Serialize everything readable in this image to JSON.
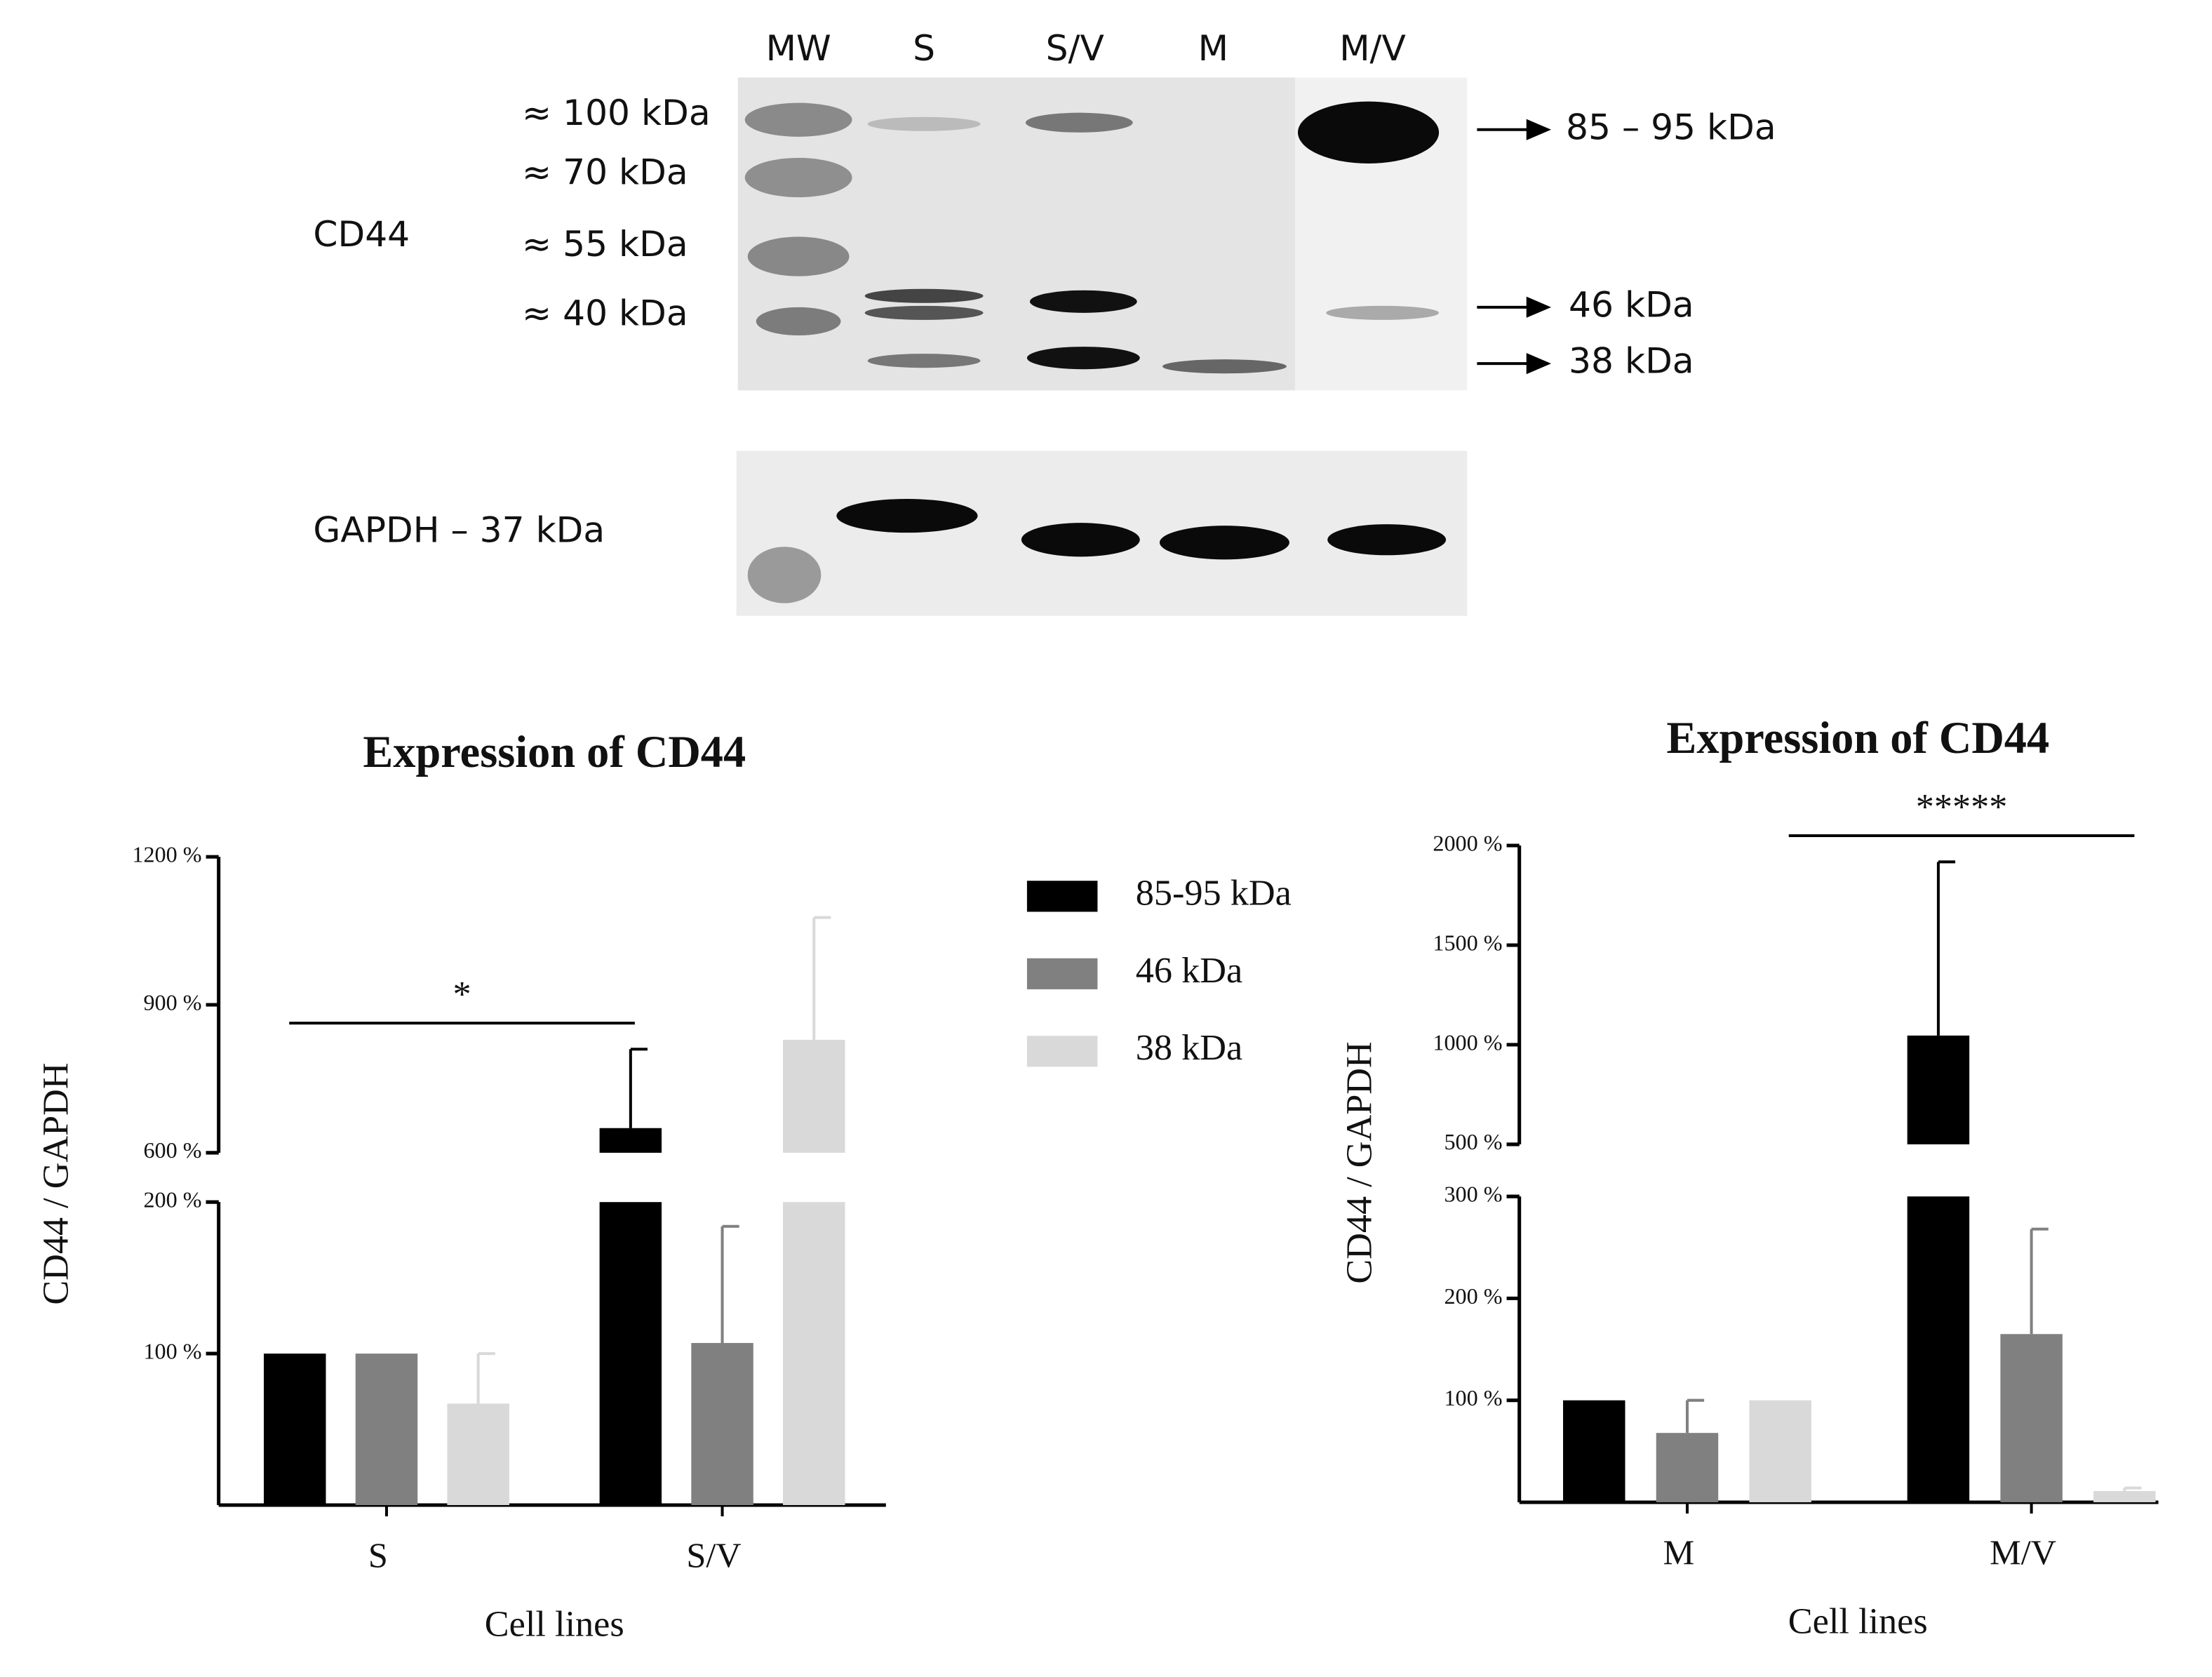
{
  "blot": {
    "lanes": [
      "MW",
      "S",
      "S/V",
      "M",
      "M/V"
    ],
    "markers": [
      "≈ 100 kDa",
      "≈ 70 kDa",
      "≈ 55 kDa",
      "≈ 40 kDa"
    ],
    "protein": "CD44",
    "bands": [
      "85 – 95 kDa",
      "46 kDa",
      "38 kDa"
    ],
    "control": "GAPDH – 37 kDa"
  },
  "chart_data": [
    {
      "type": "bar",
      "title": "Expression of CD44",
      "x_label": "Cell lines",
      "y_label": "CD44 / GAPDH",
      "categories": [
        "S",
        "S/V"
      ],
      "series": [
        {
          "name": "85-95 kDa",
          "color": "#000000",
          "values": [
            100,
            650
          ],
          "errors": [
            0,
            160
          ]
        },
        {
          "name": "46 kDa",
          "color": "#808080",
          "values": [
            100,
            107
          ],
          "errors": [
            0,
            77
          ]
        },
        {
          "name": "38 kDa",
          "color": "#d9d9d9",
          "values": [
            67,
            829
          ],
          "errors": [
            33,
            248
          ]
        }
      ],
      "ylim": [
        0,
        1200
      ],
      "ybreak": [
        200,
        600
      ],
      "yticks": [
        {
          "value": 100,
          "label": "100 %"
        },
        {
          "value": 200,
          "label": "200 %"
        },
        {
          "value": 600,
          "label": "600 %"
        },
        {
          "value": 900,
          "label": "900 %"
        },
        {
          "value": 1200,
          "label": "1200 %"
        }
      ],
      "annotations": [
        {
          "text": "*"
        }
      ],
      "legend": true
    },
    {
      "type": "bar",
      "title": "Expression of CD44",
      "x_label": "Cell lines",
      "y_label": "CD44 / GAPDH",
      "categories": [
        "M",
        "M/V"
      ],
      "series": [
        {
          "color": "#000000",
          "values": [
            100,
            1046
          ],
          "errors": [
            0,
            872
          ]
        },
        {
          "color": "#808080",
          "values": [
            68,
            165
          ],
          "errors": [
            32,
            103
          ]
        },
        {
          "color": "#d9d9d9",
          "values": [
            100,
            11
          ],
          "errors": [
            0,
            3
          ]
        }
      ],
      "ylim": [
        0,
        2000
      ],
      "ybreak": [
        300,
        500
      ],
      "yticks": [
        {
          "value": 100,
          "label": "100 %"
        },
        {
          "value": 200,
          "label": "200 %"
        },
        {
          "value": 300,
          "label": "300 %"
        },
        {
          "value": 500,
          "label": "500 %"
        },
        {
          "value": 1000,
          "label": "1000 %"
        },
        {
          "value": 1500,
          "label": "1500 %"
        },
        {
          "value": 2000,
          "label": "2000 %"
        }
      ],
      "annotations": [
        {
          "text": "*****"
        }
      ],
      "legend": false
    }
  ]
}
